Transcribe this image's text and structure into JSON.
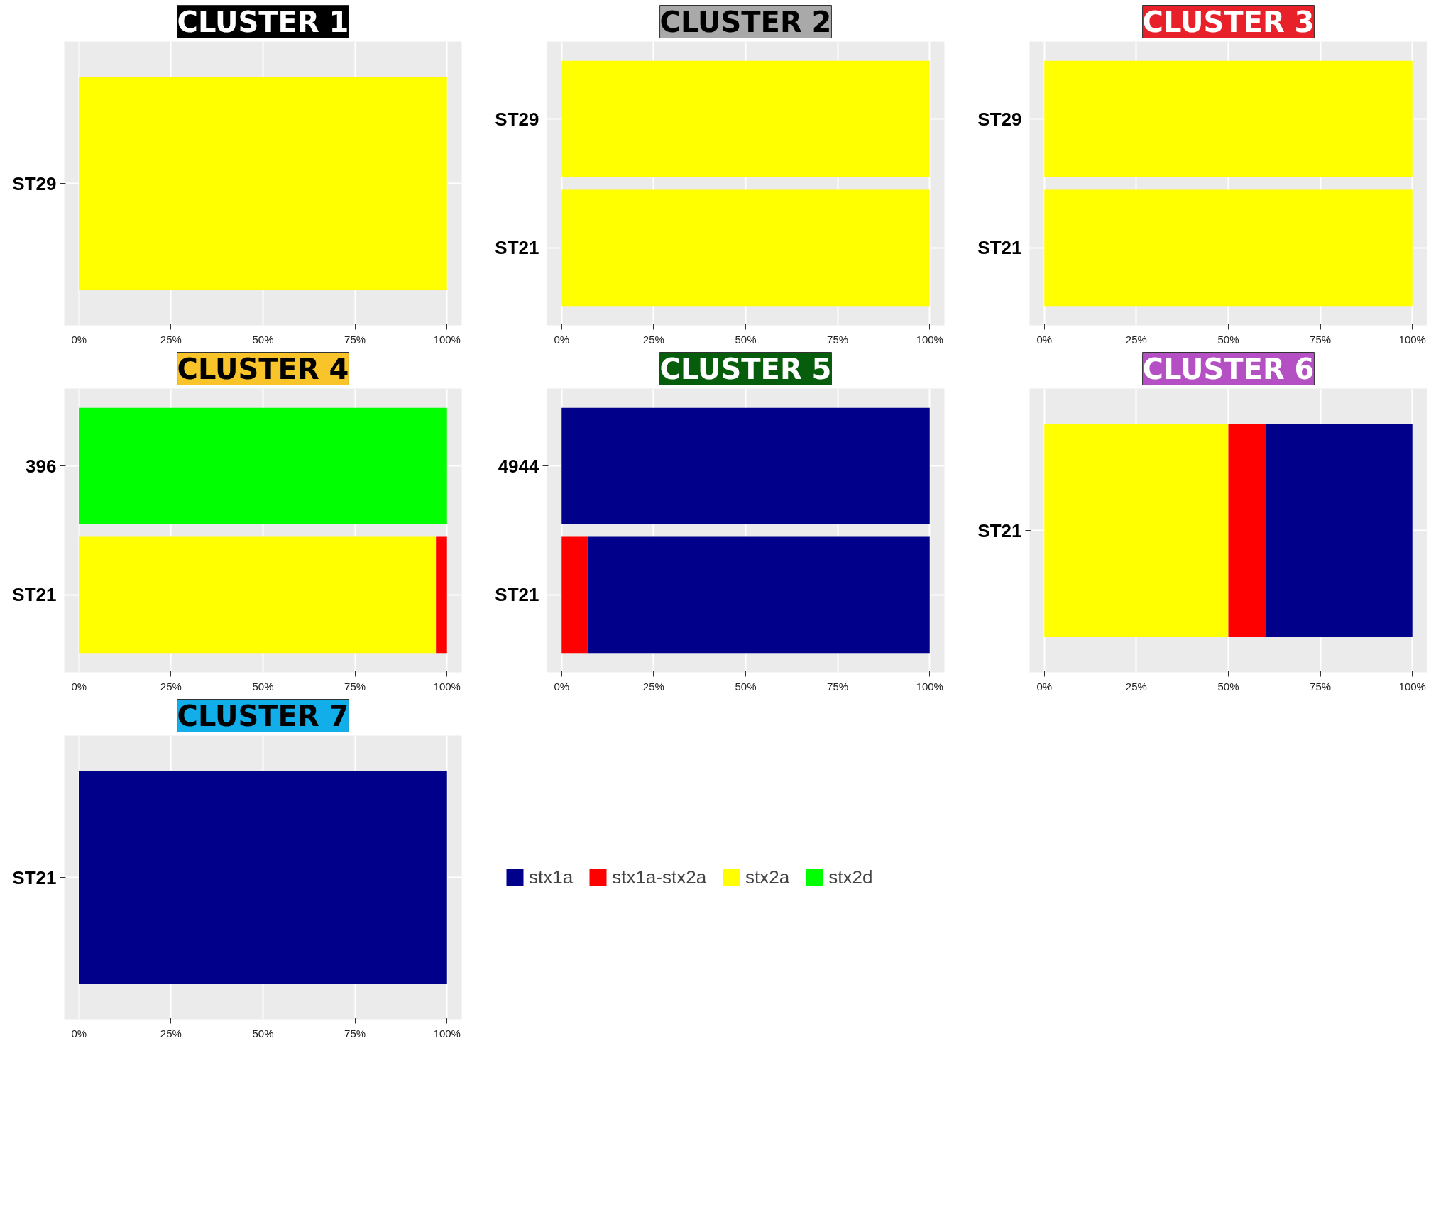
{
  "chart_data": [
    {
      "type": "bar",
      "orientation": "horizontal",
      "stacked": true,
      "title": "CLUSTER 1",
      "categories": [
        "ST29"
      ],
      "series": [
        {
          "color": "#ffff00",
          "values": [
            100
          ]
        }
      ],
      "xlim": [
        -4,
        104
      ],
      "xticks": [
        {
          "value": 0,
          "label": "0%"
        },
        {
          "value": 25,
          "label": "25%"
        },
        {
          "value": 50,
          "label": "50%"
        },
        {
          "value": 75,
          "label": "75%"
        },
        {
          "value": 100,
          "label": "100%"
        }
      ],
      "grid": true
    },
    {
      "type": "bar",
      "orientation": "horizontal",
      "stacked": true,
      "title": "CLUSTER 2",
      "categories": [
        "ST29",
        "ST21"
      ],
      "series": [
        {
          "color": "#ffff00",
          "values": [
            100,
            100
          ]
        }
      ],
      "xlim": [
        -4,
        104
      ],
      "xticks": [
        {
          "value": 0,
          "label": "0%"
        },
        {
          "value": 25,
          "label": "25%"
        },
        {
          "value": 50,
          "label": "50%"
        },
        {
          "value": 75,
          "label": "75%"
        },
        {
          "value": 100,
          "label": "100%"
        }
      ],
      "grid": true
    },
    {
      "type": "bar",
      "orientation": "horizontal",
      "stacked": true,
      "title": "CLUSTER 3",
      "categories": [
        "ST29",
        "ST21"
      ],
      "series": [
        {
          "color": "#ffff00",
          "values": [
            100,
            100
          ]
        }
      ],
      "xlim": [
        -4,
        104
      ],
      "xticks": [
        {
          "value": 0,
          "label": "0%"
        },
        {
          "value": 25,
          "label": "25%"
        },
        {
          "value": 50,
          "label": "50%"
        },
        {
          "value": 75,
          "label": "75%"
        },
        {
          "value": 100,
          "label": "100%"
        }
      ],
      "grid": true
    },
    {
      "type": "bar",
      "orientation": "horizontal",
      "stacked": true,
      "title": "CLUSTER 4",
      "categories": [
        "396",
        "ST21"
      ],
      "series": [
        {
          "color": "#00ff00",
          "values": [
            100,
            null
          ]
        },
        {
          "color": "#ffff00",
          "values": [
            null,
            97
          ]
        },
        {
          "color": "#ff0000",
          "values": [
            null,
            3
          ]
        }
      ],
      "xlim": [
        -4,
        104
      ],
      "xticks": [
        {
          "value": 0,
          "label": "0%"
        },
        {
          "value": 25,
          "label": "25%"
        },
        {
          "value": 50,
          "label": "50%"
        },
        {
          "value": 75,
          "label": "75%"
        },
        {
          "value": 100,
          "label": "100%"
        }
      ],
      "grid": true
    },
    {
      "type": "bar",
      "orientation": "horizontal",
      "stacked": true,
      "title": "CLUSTER 5",
      "categories": [
        "4944",
        "ST21"
      ],
      "series": [
        {
          "color": "#ff0000",
          "values": [
            null,
            7
          ]
        },
        {
          "color": "#00008b",
          "values": [
            100,
            93
          ]
        }
      ],
      "xlim": [
        -4,
        104
      ],
      "xticks": [
        {
          "value": 0,
          "label": "0%"
        },
        {
          "value": 25,
          "label": "25%"
        },
        {
          "value": 50,
          "label": "50%"
        },
        {
          "value": 75,
          "label": "75%"
        },
        {
          "value": 100,
          "label": "100%"
        }
      ],
      "grid": true
    },
    {
      "type": "bar",
      "orientation": "horizontal",
      "stacked": true,
      "title": "CLUSTER 6",
      "categories": [
        "ST21"
      ],
      "series": [
        {
          "color": "#ffff00",
          "values": [
            50
          ]
        },
        {
          "color": "#ff0000",
          "values": [
            10
          ]
        },
        {
          "color": "#00008b",
          "values": [
            40
          ]
        }
      ],
      "xlim": [
        -4,
        104
      ],
      "xticks": [
        {
          "value": 0,
          "label": "0%"
        },
        {
          "value": 25,
          "label": "25%"
        },
        {
          "value": 50,
          "label": "50%"
        },
        {
          "value": 75,
          "label": "75%"
        },
        {
          "value": 100,
          "label": "100%"
        }
      ],
      "grid": true
    },
    {
      "type": "bar",
      "orientation": "horizontal",
      "stacked": true,
      "title": "CLUSTER 7",
      "categories": [
        "ST21"
      ],
      "series": [
        {
          "name": "stx2d",
          "color": "#00ff00",
          "values": [
            null
          ]
        },
        {
          "name": "stx2a",
          "color": "#ffff00",
          "values": [
            null
          ]
        },
        {
          "name": "stx1a-stx2a",
          "color": "#ff0000",
          "values": [
            null
          ]
        },
        {
          "name": "stx1a",
          "color": "#00008b",
          "values": [
            100
          ]
        }
      ],
      "xlim": [
        -4,
        104
      ],
      "xticks": [
        {
          "value": 0,
          "label": "0%"
        },
        {
          "value": 25,
          "label": "25%"
        },
        {
          "value": 50,
          "label": "50%"
        },
        {
          "value": 75,
          "label": "75%"
        },
        {
          "value": 100,
          "label": "100%"
        }
      ],
      "grid": true,
      "legend": "right"
    }
  ]
}
